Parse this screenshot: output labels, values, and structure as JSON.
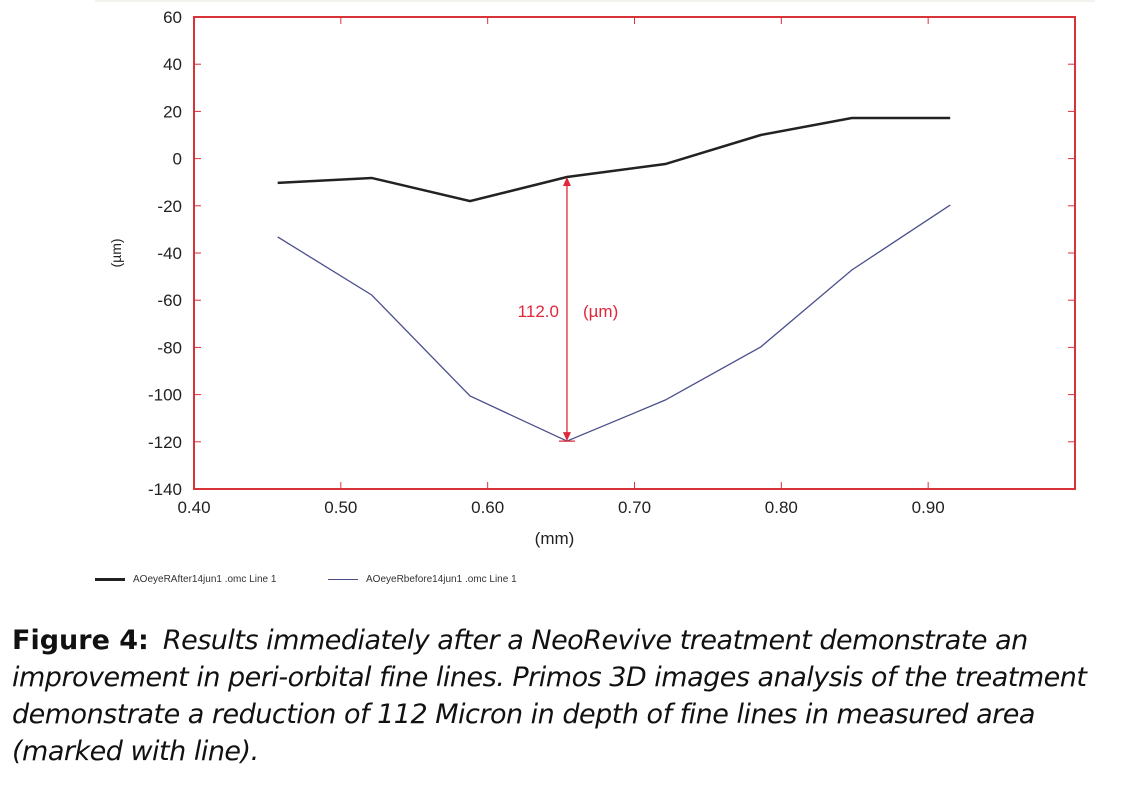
{
  "chart_data": {
    "type": "line",
    "xlabel": "(mm)",
    "ylabel": "(µm)",
    "xlim": [
      0.4,
      1.0
    ],
    "ylim": [
      -140,
      60
    ],
    "x_ticks": [
      "0.40",
      "0.50",
      "0.60",
      "0.70",
      "0.80",
      "0.90"
    ],
    "y_ticks": [
      "60",
      "40",
      "20",
      "0",
      "-20",
      "-40",
      "-60",
      "-80",
      "-100",
      "-120",
      "-140"
    ],
    "grid": false,
    "legend_placement": "bottom-left",
    "frame_color": "#d9333a",
    "series": [
      {
        "name": "AOeyeRAfter14jun1 .omc Line 1",
        "color": "#222222",
        "x": [
          0.457,
          0.521,
          0.588,
          0.654,
          0.721,
          0.786,
          0.848,
          0.915
        ],
        "y": [
          -10.3,
          -8.2,
          -18.0,
          -7.8,
          -2.3,
          10.0,
          17.2,
          17.2
        ]
      },
      {
        "name": "AOeyeRbefore14jun1 .omc Line 1",
        "color": "#4a4f8c",
        "x": [
          0.457,
          0.521,
          0.588,
          0.654,
          0.721,
          0.786,
          0.848,
          0.915
        ],
        "y": [
          -33.2,
          -57.8,
          -100.6,
          -119.7,
          -102.3,
          -79.8,
          -47.2,
          -19.7
        ]
      }
    ],
    "annotation": {
      "text_value": "112.0",
      "text_unit": "(µm)",
      "x": 0.654,
      "y_from": -7.8,
      "y_to": -119.7,
      "color": "#e0283a"
    }
  },
  "caption": {
    "label": "Figure 4:",
    "text": "Results immediately after a NeoRevive treatment demonstrate an improvement in peri-orbital  fine lines. Primos 3D  images analysis of the treatment demonstrate a reduction of 112 Micron in depth of fine lines in measured area (marked with line)."
  }
}
